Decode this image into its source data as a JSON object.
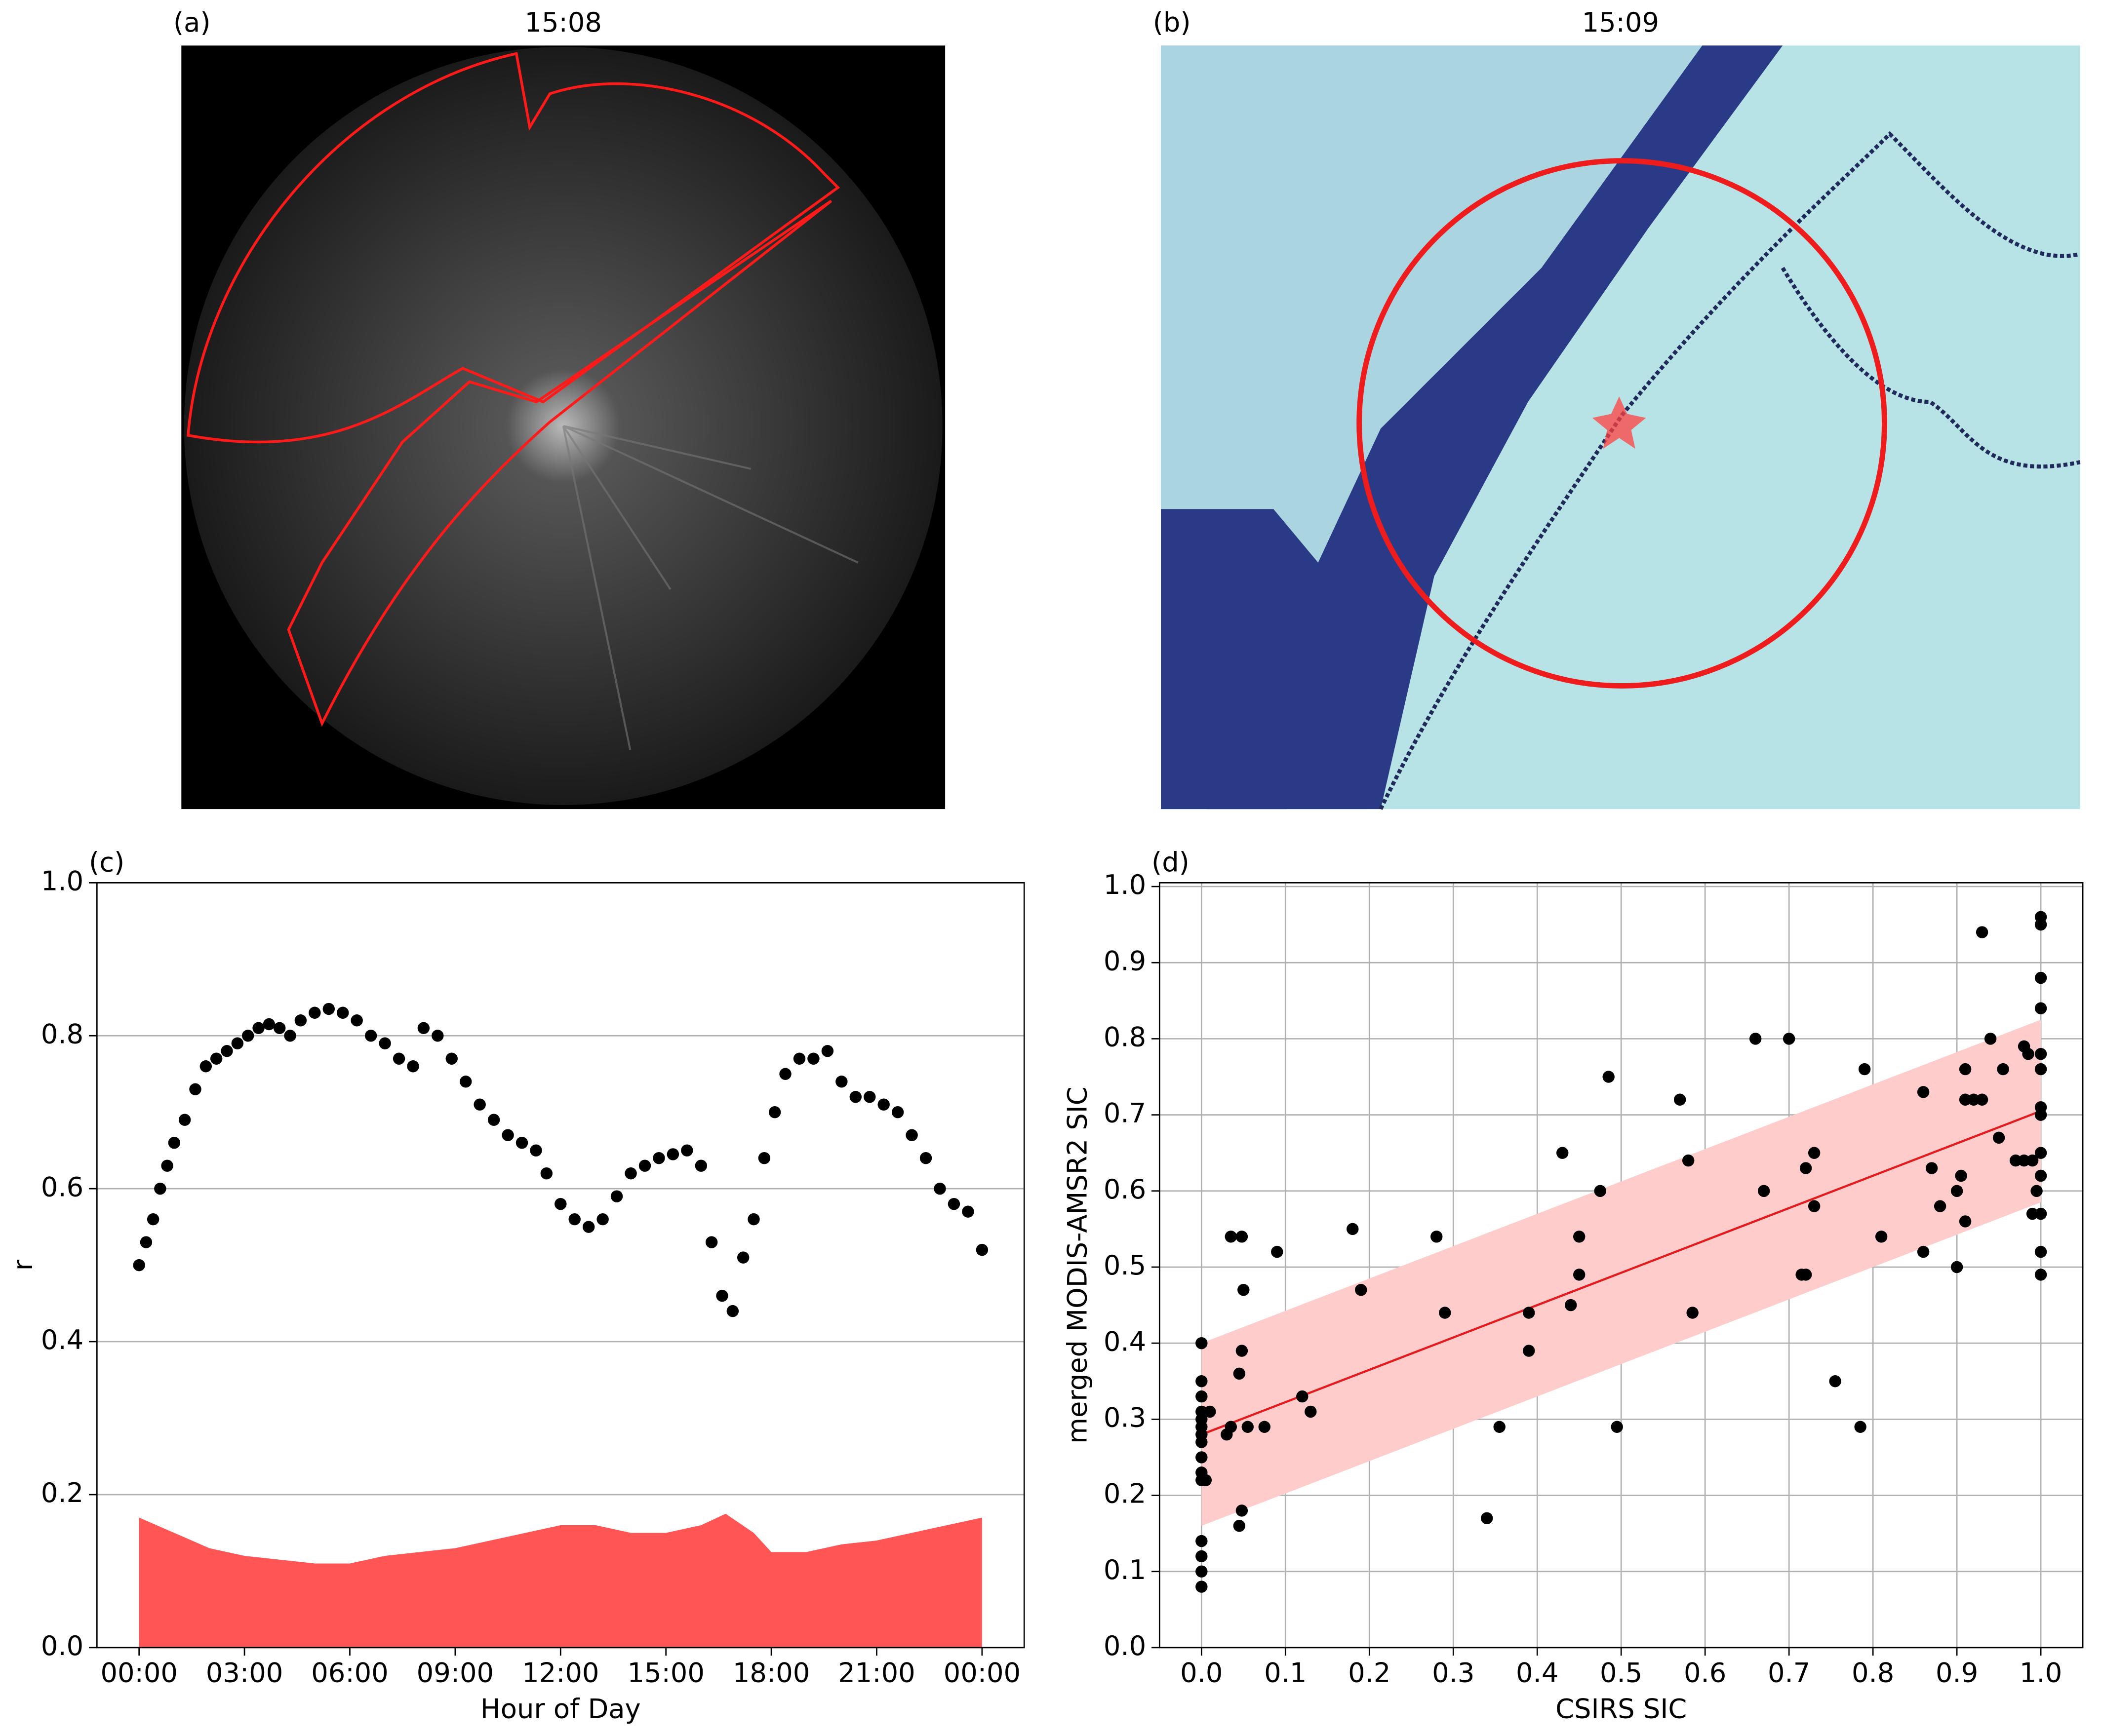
{
  "chart_data": [
    {
      "type": "image",
      "label": "(a)",
      "title": "15:08"
    },
    {
      "type": "image",
      "label": "(b)",
      "title": "15:09"
    },
    {
      "type": "scatter",
      "label": "(c)",
      "xlabel": "Hour of Day",
      "ylabel": "r",
      "xlim": [
        -1.2,
        25.2
      ],
      "ylim": [
        0,
        1
      ],
      "xticks": [
        {
          "value": 0,
          "label": "00:00"
        },
        {
          "value": 3,
          "label": "03:00"
        },
        {
          "value": 6,
          "label": "06:00"
        },
        {
          "value": 9,
          "label": "09:00"
        },
        {
          "value": 12,
          "label": "12:00"
        },
        {
          "value": 15,
          "label": "15:00"
        },
        {
          "value": 18,
          "label": "18:00"
        },
        {
          "value": 21,
          "label": "21:00"
        },
        {
          "value": 24,
          "label": "00:00"
        }
      ],
      "yticks": [
        {
          "value": 0,
          "label": "0.0"
        },
        0.2,
        0.4,
        0.6,
        0.8,
        {
          "value": 1,
          "label": "1.0"
        }
      ],
      "grid": "y",
      "series": [
        {
          "type": "scatter",
          "color": "#000000",
          "x": [
            0.0,
            0.2,
            0.4,
            0.6,
            0.8,
            1.0,
            1.3,
            1.6,
            1.9,
            2.2,
            2.5,
            2.8,
            3.1,
            3.4,
            3.7,
            4.0,
            4.3,
            4.6,
            5.0,
            5.4,
            5.8,
            6.2,
            6.6,
            7.0,
            7.4,
            7.8,
            8.1,
            8.5,
            8.9,
            9.3,
            9.7,
            10.1,
            10.5,
            10.9,
            11.3,
            11.6,
            12.0,
            12.4,
            12.8,
            13.2,
            13.6,
            14.0,
            14.4,
            14.8,
            15.2,
            15.6,
            16.0,
            16.3,
            16.6,
            16.9,
            17.2,
            17.5,
            17.8,
            18.1,
            18.4,
            18.8,
            19.2,
            19.6,
            20.0,
            20.4,
            20.8,
            21.2,
            21.6,
            22.0,
            22.4,
            22.8,
            23.2,
            23.6,
            24.0
          ],
          "values": [
            0.5,
            0.53,
            0.56,
            0.6,
            0.63,
            0.66,
            0.69,
            0.73,
            0.76,
            0.77,
            0.78,
            0.79,
            0.8,
            0.81,
            0.815,
            0.81,
            0.8,
            0.82,
            0.83,
            0.835,
            0.83,
            0.82,
            0.8,
            0.79,
            0.77,
            0.76,
            0.81,
            0.8,
            0.77,
            0.74,
            0.71,
            0.69,
            0.67,
            0.66,
            0.65,
            0.62,
            0.58,
            0.56,
            0.55,
            0.56,
            0.59,
            0.62,
            0.63,
            0.64,
            0.645,
            0.65,
            0.63,
            0.53,
            0.46,
            0.44,
            0.51,
            0.56,
            0.64,
            0.7,
            0.75,
            0.77,
            0.77,
            0.78,
            0.74,
            0.72,
            0.72,
            0.71,
            0.7,
            0.67,
            0.64,
            0.6,
            0.58,
            0.57,
            0.52
          ]
        },
        {
          "type": "area",
          "color": "#ff4c4c",
          "x": [
            0,
            1,
            2,
            3,
            4,
            5,
            6,
            7,
            8,
            9,
            10,
            11,
            12,
            13,
            14,
            15,
            16,
            16.7,
            17.5,
            18,
            19,
            20,
            21,
            22,
            23,
            24
          ],
          "values": [
            0.17,
            0.15,
            0.13,
            0.12,
            0.115,
            0.11,
            0.11,
            0.12,
            0.125,
            0.13,
            0.14,
            0.15,
            0.16,
            0.16,
            0.15,
            0.15,
            0.16,
            0.175,
            0.15,
            0.125,
            0.125,
            0.135,
            0.14,
            0.15,
            0.16,
            0.17
          ]
        }
      ]
    },
    {
      "type": "scatter",
      "label": "(d)",
      "xlabel": "CSIRS SIC",
      "ylabel": "merged MODIS-AMSR2 SIC",
      "xlim": [
        -0.05,
        1.05
      ],
      "ylim": [
        0,
        1.005
      ],
      "xticks": [
        {
          "value": 0,
          "label": "0.0"
        },
        0.1,
        0.2,
        0.3,
        0.4,
        0.5,
        0.6,
        0.7,
        0.8,
        0.9,
        {
          "value": 1,
          "label": "1.0"
        }
      ],
      "yticks": [
        {
          "value": 0,
          "label": "0.0"
        },
        0.1,
        0.2,
        0.3,
        0.4,
        0.5,
        0.6,
        0.7,
        0.8,
        0.9,
        {
          "value": 1,
          "label": "1.0"
        }
      ],
      "grid": "both",
      "band": {
        "color": "#ffcccc",
        "x": [
          0,
          1
        ],
        "lower": [
          0.16,
          0.585
        ],
        "upper": [
          0.4,
          0.825
        ]
      },
      "fit": {
        "color": "#e41a1c",
        "x": [
          0,
          1
        ],
        "values": [
          0.28,
          0.705
        ]
      },
      "series": [
        {
          "type": "scatter",
          "color": "#000000",
          "x": [
            0,
            0,
            0,
            0,
            0,
            0,
            0,
            0,
            0,
            0,
            0,
            0,
            0,
            0,
            0,
            0.005,
            0.01,
            0.03,
            0.035,
            0.035,
            0.045,
            0.045,
            0.048,
            0.048,
            0.05,
            0.048,
            0.055,
            0.075,
            0.09,
            0.12,
            0.13,
            0.18,
            0.19,
            0.28,
            0.29,
            0.34,
            0.355,
            0.39,
            0.39,
            0.43,
            0.44,
            0.45,
            0.45,
            0.475,
            0.485,
            0.495,
            0.57,
            0.58,
            0.585,
            0.66,
            0.67,
            0.7,
            0.715,
            0.72,
            0.72,
            0.73,
            0.73,
            0.755,
            0.785,
            0.79,
            0.81,
            0.86,
            0.86,
            0.87,
            0.88,
            0.9,
            0.9,
            0.905,
            0.91,
            0.91,
            0.91,
            0.92,
            0.93,
            0.93,
            0.94,
            0.95,
            0.955,
            0.97,
            0.98,
            0.98,
            0.985,
            0.99,
            0.99,
            0.995,
            1,
            1,
            1,
            1,
            1,
            1,
            1,
            1,
            1,
            1,
            1,
            1,
            1
          ],
          "values": [
            0.08,
            0.1,
            0.12,
            0.14,
            0.22,
            0.23,
            0.25,
            0.27,
            0.28,
            0.29,
            0.3,
            0.31,
            0.33,
            0.35,
            0.4,
            0.22,
            0.31,
            0.28,
            0.29,
            0.54,
            0.36,
            0.16,
            0.18,
            0.39,
            0.47,
            0.54,
            0.29,
            0.29,
            0.52,
            0.33,
            0.31,
            0.55,
            0.47,
            0.54,
            0.44,
            0.17,
            0.29,
            0.44,
            0.39,
            0.65,
            0.45,
            0.54,
            0.49,
            0.6,
            0.75,
            0.29,
            0.72,
            0.64,
            0.44,
            0.8,
            0.6,
            0.8,
            0.49,
            0.49,
            0.63,
            0.65,
            0.58,
            0.35,
            0.29,
            0.76,
            0.54,
            0.73,
            0.52,
            0.63,
            0.58,
            0.6,
            0.5,
            0.62,
            0.56,
            0.76,
            0.72,
            0.72,
            0.72,
            0.94,
            0.8,
            0.67,
            0.76,
            0.64,
            0.64,
            0.79,
            0.78,
            0.57,
            0.64,
            0.6,
            0.49,
            0.52,
            0.57,
            0.62,
            0.65,
            0.7,
            0.71,
            0.76,
            0.78,
            0.84,
            0.88,
            0.95,
            0.96
          ]
        }
      ]
    }
  ]
}
